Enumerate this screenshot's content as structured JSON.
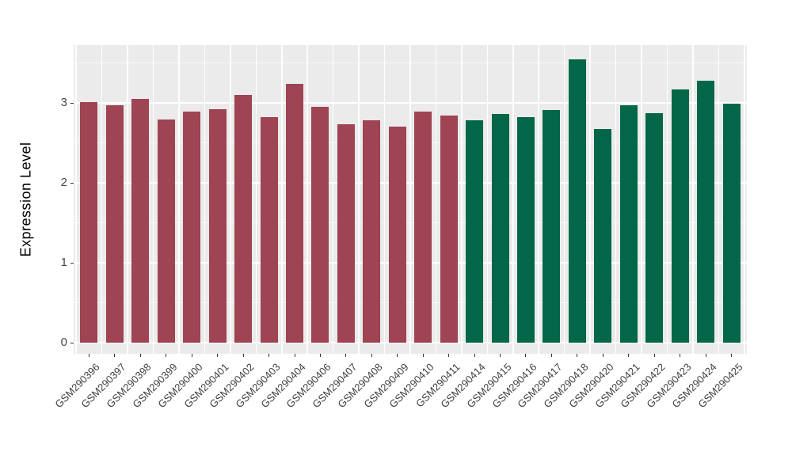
{
  "figure": {
    "background": "#FFFFFF",
    "panel_background": "#EBEBEB",
    "grid_color": "#FFFFFF",
    "tick_color": "#333333",
    "axis_text_color": "#454545",
    "axis_title_color": "#000000"
  },
  "y_axis": {
    "title": "Expression Level",
    "tick_labels": [
      "0",
      "1",
      "2",
      "3"
    ]
  },
  "chart_data": {
    "type": "bar",
    "title": "",
    "xlabel": "",
    "ylabel": "Expression Level",
    "ylim": [
      -0.14,
      3.72
    ],
    "yticks": [
      0,
      1,
      2,
      3
    ],
    "yticks_minor": [
      0.5,
      1.5,
      2.5,
      3.5
    ],
    "grid": true,
    "legend_position": "none",
    "categories": [
      "GSM290396",
      "GSM290397",
      "GSM290398",
      "GSM290399",
      "GSM290400",
      "GSM290401",
      "GSM290402",
      "GSM290403",
      "GSM290404",
      "GSM290406",
      "GSM290407",
      "GSM290408",
      "GSM290409",
      "GSM290410",
      "GSM290411",
      "GSM290414",
      "GSM290415",
      "GSM290416",
      "GSM290417",
      "GSM290418",
      "GSM290420",
      "GSM290421",
      "GSM290422",
      "GSM290423",
      "GSM290424",
      "GSM290425"
    ],
    "values": [
      3.01,
      2.97,
      3.05,
      2.79,
      2.89,
      2.92,
      3.1,
      2.82,
      3.24,
      2.95,
      2.73,
      2.78,
      2.7,
      2.89,
      2.84,
      2.78,
      2.86,
      2.82,
      2.91,
      3.54,
      2.67,
      2.97,
      2.87,
      3.17,
      3.28,
      2.99
    ],
    "bar_groups": [
      "maroon",
      "maroon",
      "maroon",
      "maroon",
      "maroon",
      "maroon",
      "maroon",
      "maroon",
      "maroon",
      "maroon",
      "maroon",
      "maroon",
      "maroon",
      "maroon",
      "maroon",
      "green",
      "green",
      "green",
      "green",
      "green",
      "green",
      "green",
      "green",
      "green",
      "green",
      "green"
    ],
    "group_colors": {
      "maroon": "#9E4452",
      "green": "#016748"
    }
  }
}
